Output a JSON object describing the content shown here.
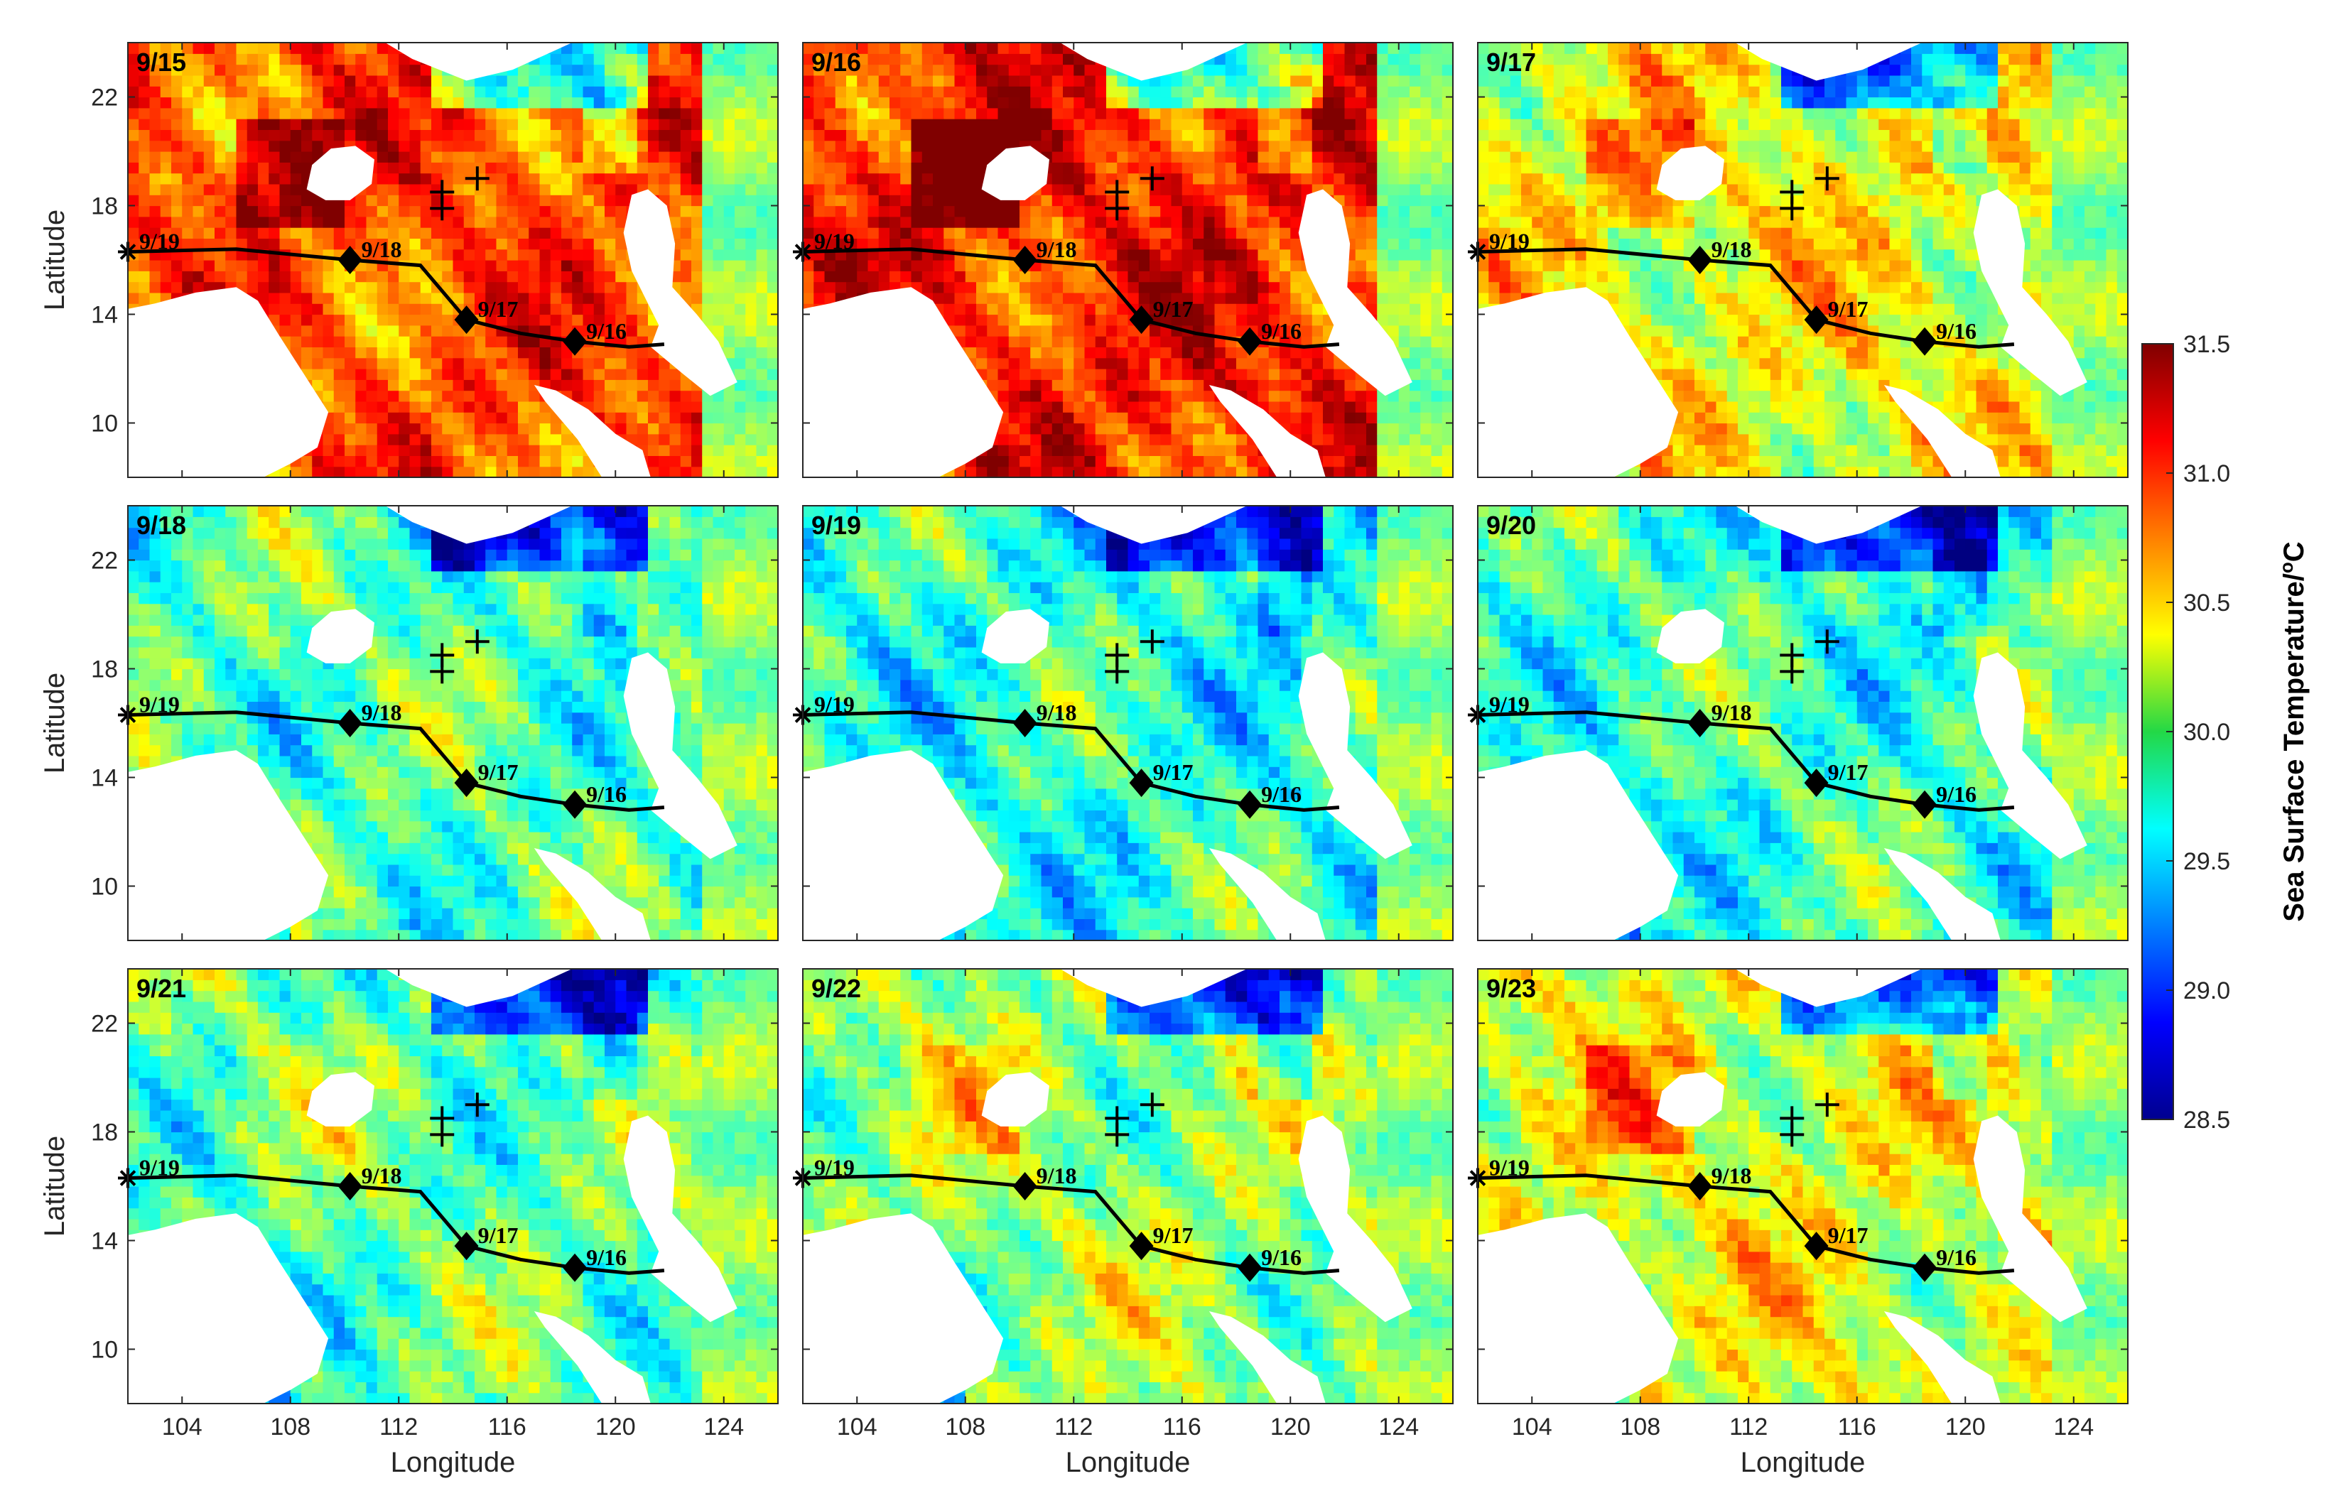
{
  "chart_data": {
    "type": "heatmap",
    "xlabel": "Longitude",
    "ylabel": "Latitude",
    "xlim": [
      102,
      126
    ],
    "ylim": [
      8,
      24
    ],
    "xticks": [
      104,
      108,
      112,
      116,
      120,
      124
    ],
    "yticks": [
      10,
      14,
      18,
      22
    ],
    "colorbar": {
      "label": "Sea Surface Temperature/°C",
      "label_main": "Sea Surface Temperature/",
      "label_sup": "o",
      "label_unit": "C",
      "min": 28.5,
      "max": 31.5,
      "ticks": [
        "28.5",
        "29.0",
        "29.5",
        "30.0",
        "30.5",
        "31.0",
        "31.5"
      ],
      "colormap": "jet"
    },
    "panels": [
      {
        "date": "9/15",
        "mean_level": 0.8
      },
      {
        "date": "9/16",
        "mean_level": 0.85
      },
      {
        "date": "9/17",
        "mean_level": 0.62
      },
      {
        "date": "9/18",
        "mean_level": 0.46
      },
      {
        "date": "9/19",
        "mean_level": 0.42
      },
      {
        "date": "9/20",
        "mean_level": 0.44
      },
      {
        "date": "9/21",
        "mean_level": 0.48
      },
      {
        "date": "9/22",
        "mean_level": 0.53
      },
      {
        "date": "9/23",
        "mean_level": 0.6
      }
    ],
    "typhoon_track": {
      "path": [
        [
          102.0,
          16.3
        ],
        [
          106.0,
          16.4
        ],
        [
          110.2,
          16.0
        ],
        [
          112.8,
          15.8
        ],
        [
          114.5,
          13.8
        ],
        [
          116.5,
          13.3
        ],
        [
          118.5,
          13.0
        ],
        [
          120.5,
          12.8
        ],
        [
          121.8,
          12.9
        ]
      ],
      "markers": [
        {
          "date": "9/19",
          "lon": 102.0,
          "lat": 16.3,
          "symbol": "asterisk"
        },
        {
          "date": "9/18",
          "lon": 110.2,
          "lat": 16.0,
          "symbol": "diamond"
        },
        {
          "date": "9/17",
          "lon": 114.5,
          "lat": 13.8,
          "symbol": "diamond"
        },
        {
          "date": "9/16",
          "lon": 118.5,
          "lat": 13.0,
          "symbol": "diamond"
        }
      ]
    },
    "stations": [
      {
        "lon": 113.6,
        "lat": 18.5
      },
      {
        "lon": 113.6,
        "lat": 17.9
      },
      {
        "lon": 114.9,
        "lat": 19.0
      }
    ],
    "land_masks": [
      {
        "name": "Indochina",
        "lon": 105.5,
        "lat": 12.0
      },
      {
        "name": "Hainan",
        "lon": 110.0,
        "lat": 19.2
      },
      {
        "name": "Luzon",
        "lon": 122.4,
        "lat": 14.0
      }
    ]
  }
}
